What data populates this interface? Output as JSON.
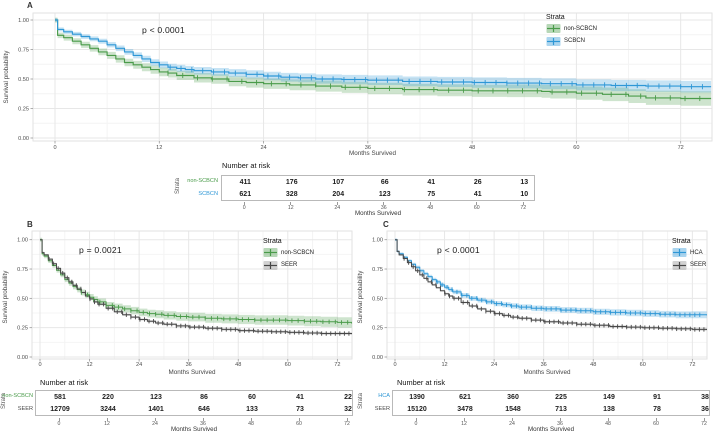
{
  "figure": {
    "type": "kaplan-meier-survival-figure",
    "background": "#ffffff",
    "grid_major_color": "#e7e7e7",
    "grid_minor_color": "#f4f4f4",
    "axis_text_color": "#4d4d4d"
  },
  "chart_data": [
    {
      "panel": "A",
      "panel_label": "A",
      "type": "line",
      "subtype": "kaplan-meier-step",
      "annotation": "p < 0.0001",
      "xlabel": "Months Survived",
      "ylabel": "Survival probability",
      "legend_title": "Strata",
      "legend_position": "inside-top-right",
      "xlim": [
        -2.5,
        76
      ],
      "ylim": [
        0,
        1.02
      ],
      "x_ticks": [
        0,
        12,
        24,
        36,
        48,
        60,
        72
      ],
      "y_ticks": [
        "0.00",
        "0.25",
        "0.50",
        "0.75",
        "1.00"
      ],
      "grid": true,
      "series": [
        {
          "name": "non-SCBCN",
          "color": "#4a9b4a",
          "fill": "#4a9b4a",
          "x": [
            0,
            0.3,
            1,
            2,
            3,
            4,
            5,
            6,
            7,
            8,
            9,
            10,
            11,
            12,
            13,
            14,
            16,
            18,
            20,
            22,
            24,
            27,
            30,
            33,
            36,
            40,
            44,
            48,
            52,
            56,
            57,
            60,
            63,
            66,
            68,
            72,
            75.5
          ],
          "y": [
            1.0,
            0.87,
            0.85,
            0.82,
            0.79,
            0.76,
            0.73,
            0.7,
            0.67,
            0.64,
            0.62,
            0.6,
            0.58,
            0.56,
            0.55,
            0.53,
            0.51,
            0.5,
            0.48,
            0.47,
            0.46,
            0.45,
            0.44,
            0.43,
            0.42,
            0.41,
            0.405,
            0.4,
            0.4,
            0.395,
            0.39,
            0.38,
            0.37,
            0.355,
            0.34,
            0.335,
            0.335
          ],
          "ci_halfwidth": [
            0.022,
            0.062
          ],
          "censor": {
            "start": 13,
            "end": 75,
            "step": 1.7
          }
        },
        {
          "name": "SCBCN",
          "color": "#2e97d6",
          "fill": "#2e97d6",
          "x": [
            0,
            0.3,
            1,
            2,
            3,
            4,
            5,
            6,
            7,
            8,
            9,
            10,
            11,
            12,
            13,
            14,
            15,
            16,
            18,
            20,
            22,
            24,
            26,
            28,
            30,
            33,
            36,
            40,
            44,
            48,
            52,
            56,
            60,
            64,
            68,
            72,
            75.5
          ],
          "y": [
            1.0,
            0.92,
            0.9,
            0.88,
            0.86,
            0.84,
            0.82,
            0.79,
            0.76,
            0.73,
            0.7,
            0.67,
            0.64,
            0.62,
            0.6,
            0.59,
            0.58,
            0.57,
            0.56,
            0.55,
            0.54,
            0.525,
            0.515,
            0.51,
            0.5,
            0.495,
            0.49,
            0.48,
            0.475,
            0.47,
            0.465,
            0.46,
            0.45,
            0.445,
            0.44,
            0.435,
            0.435
          ],
          "ci_halfwidth": [
            0.016,
            0.05
          ],
          "censor": {
            "start": 12,
            "end": 75,
            "step": 1.25
          }
        }
      ],
      "risk_table": {
        "title": "Number at risk",
        "axis_label": "Strata",
        "xlabel": "Months Survived",
        "ticks": [
          "0",
          "12",
          "24",
          "36",
          "48",
          "60",
          "72"
        ],
        "rows": [
          {
            "name": "non-SCBCN",
            "values": [
              "411",
              "176",
              "107",
              "66",
              "41",
              "26",
              "13"
            ]
          },
          {
            "name": "SCBCN",
            "values": [
              "621",
              "328",
              "204",
              "123",
              "75",
              "41",
              "10"
            ]
          }
        ]
      }
    },
    {
      "panel": "B",
      "panel_label": "B",
      "type": "line",
      "subtype": "kaplan-meier-step",
      "annotation": "p = 0.0021",
      "xlabel": "Months Survived",
      "ylabel": "Survival probability",
      "legend_title": "Strata",
      "legend_position": "inside-top-right",
      "xlim": [
        -2,
        76
      ],
      "ylim": [
        0,
        1.02
      ],
      "x_ticks": [
        0,
        12,
        24,
        36,
        48,
        60,
        72
      ],
      "y_ticks": [
        "0.00",
        "0.25",
        "0.50",
        "0.75",
        "1.00"
      ],
      "grid": true,
      "series": [
        {
          "name": "non-SCBCN",
          "color": "#4a9b4a",
          "fill": "#4a9b4a",
          "x": [
            0,
            0.5,
            1,
            2,
            3,
            4,
            5,
            6,
            7,
            8,
            9,
            10,
            11,
            12,
            13,
            14,
            16,
            18,
            20,
            22,
            24,
            26,
            28,
            30,
            33,
            36,
            40,
            44,
            48,
            52,
            56,
            60,
            64,
            68,
            72,
            75.5
          ],
          "y": [
            1.0,
            0.88,
            0.86,
            0.82,
            0.78,
            0.74,
            0.7,
            0.66,
            0.63,
            0.6,
            0.575,
            0.55,
            0.53,
            0.51,
            0.49,
            0.47,
            0.44,
            0.425,
            0.41,
            0.395,
            0.38,
            0.37,
            0.365,
            0.355,
            0.345,
            0.34,
            0.33,
            0.325,
            0.32,
            0.315,
            0.315,
            0.31,
            0.305,
            0.3,
            0.295,
            0.285
          ],
          "ci_halfwidth": [
            0.016,
            0.045
          ],
          "censor": {
            "start": 10,
            "end": 75,
            "step": 1.5
          }
        },
        {
          "name": "SEER",
          "color": "#474747",
          "fill": "#8f8f8f",
          "x": [
            0,
            0.5,
            1,
            2,
            3,
            4,
            5,
            6,
            7,
            8,
            9,
            10,
            11,
            12,
            13,
            14,
            16,
            18,
            20,
            22,
            24,
            26,
            28,
            30,
            33,
            36,
            40,
            44,
            48,
            52,
            56,
            60,
            64,
            68,
            72,
            75.5
          ],
          "y": [
            1.0,
            0.89,
            0.87,
            0.835,
            0.795,
            0.755,
            0.715,
            0.675,
            0.64,
            0.61,
            0.58,
            0.55,
            0.52,
            0.495,
            0.47,
            0.45,
            0.415,
            0.385,
            0.36,
            0.34,
            0.32,
            0.305,
            0.29,
            0.28,
            0.265,
            0.255,
            0.245,
            0.235,
            0.225,
            0.22,
            0.215,
            0.21,
            0.205,
            0.2,
            0.2,
            0.195
          ],
          "ci_halfwidth": [
            0.007,
            0.013
          ],
          "censor": {
            "start": 2.2,
            "end": 75,
            "step": 1.1
          }
        }
      ],
      "risk_table": {
        "title": "Number at risk",
        "axis_label": "Strata",
        "xlabel": "Months Survived",
        "ticks": [
          "0",
          "12",
          "24",
          "36",
          "48",
          "60",
          "72"
        ],
        "rows": [
          {
            "name": "non-SCBCN",
            "values": [
              "581",
              "220",
              "123",
              "86",
              "60",
              "41",
              "22"
            ]
          },
          {
            "name": "SEER",
            "values": [
              "12709",
              "3244",
              "1401",
              "646",
              "133",
              "73",
              "32"
            ]
          }
        ]
      }
    },
    {
      "panel": "C",
      "panel_label": "C",
      "type": "line",
      "subtype": "kaplan-meier-step",
      "annotation": "p < 0.0001",
      "xlabel": "Months Survived",
      "ylabel": "Survival probability",
      "legend_title": "Strata",
      "legend_position": "inside-top-right",
      "xlim": [
        -2,
        76
      ],
      "ylim": [
        0,
        1.02
      ],
      "x_ticks": [
        0,
        12,
        24,
        36,
        48,
        60,
        72
      ],
      "y_ticks": [
        "0.00",
        "0.25",
        "0.50",
        "0.75",
        "1.00"
      ],
      "grid": true,
      "series": [
        {
          "name": "HCA",
          "color": "#2e97d6",
          "fill": "#2e97d6",
          "x": [
            0,
            0.5,
            1,
            2,
            3,
            4,
            5,
            6,
            7,
            8,
            9,
            10,
            11,
            12,
            13,
            14,
            16,
            18,
            20,
            22,
            24,
            26,
            28,
            30,
            33,
            36,
            40,
            44,
            48,
            52,
            56,
            60,
            64,
            68,
            72,
            75.5
          ],
          "y": [
            1.0,
            0.9,
            0.88,
            0.85,
            0.82,
            0.79,
            0.765,
            0.735,
            0.71,
            0.685,
            0.66,
            0.64,
            0.615,
            0.595,
            0.575,
            0.555,
            0.525,
            0.5,
            0.485,
            0.47,
            0.455,
            0.445,
            0.435,
            0.425,
            0.415,
            0.41,
            0.4,
            0.395,
            0.385,
            0.38,
            0.375,
            0.37,
            0.365,
            0.36,
            0.36,
            0.355
          ],
          "ci_halfwidth": [
            0.011,
            0.03
          ],
          "censor": {
            "start": 9,
            "end": 75,
            "step": 1.2
          }
        },
        {
          "name": "SEER",
          "color": "#474747",
          "fill": "#8f8f8f",
          "x": [
            0,
            0.5,
            1,
            2,
            3,
            4,
            5,
            6,
            7,
            8,
            9,
            10,
            11,
            12,
            13,
            14,
            16,
            18,
            20,
            22,
            24,
            26,
            28,
            30,
            33,
            36,
            40,
            44,
            48,
            52,
            56,
            60,
            64,
            68,
            72,
            75.5
          ],
          "y": [
            1.0,
            0.9,
            0.87,
            0.84,
            0.805,
            0.77,
            0.735,
            0.7,
            0.67,
            0.64,
            0.615,
            0.59,
            0.565,
            0.54,
            0.52,
            0.5,
            0.465,
            0.435,
            0.41,
            0.39,
            0.37,
            0.355,
            0.34,
            0.33,
            0.315,
            0.3,
            0.29,
            0.28,
            0.27,
            0.26,
            0.255,
            0.25,
            0.245,
            0.24,
            0.235,
            0.23
          ],
          "ci_halfwidth": [
            0.006,
            0.013
          ],
          "censor": {
            "start": 2.2,
            "end": 75,
            "step": 1.1
          }
        }
      ],
      "risk_table": {
        "title": "Number at risk",
        "axis_label": "Strata",
        "xlabel": "Months Survived",
        "ticks": [
          "0",
          "12",
          "24",
          "36",
          "48",
          "60",
          "72"
        ],
        "rows": [
          {
            "name": "HCA",
            "values": [
              "1390",
              "621",
              "360",
              "225",
              "149",
              "91",
              "38"
            ]
          },
          {
            "name": "SEER",
            "values": [
              "15120",
              "3478",
              "1548",
              "713",
              "138",
              "78",
              "36"
            ]
          }
        ]
      }
    }
  ]
}
